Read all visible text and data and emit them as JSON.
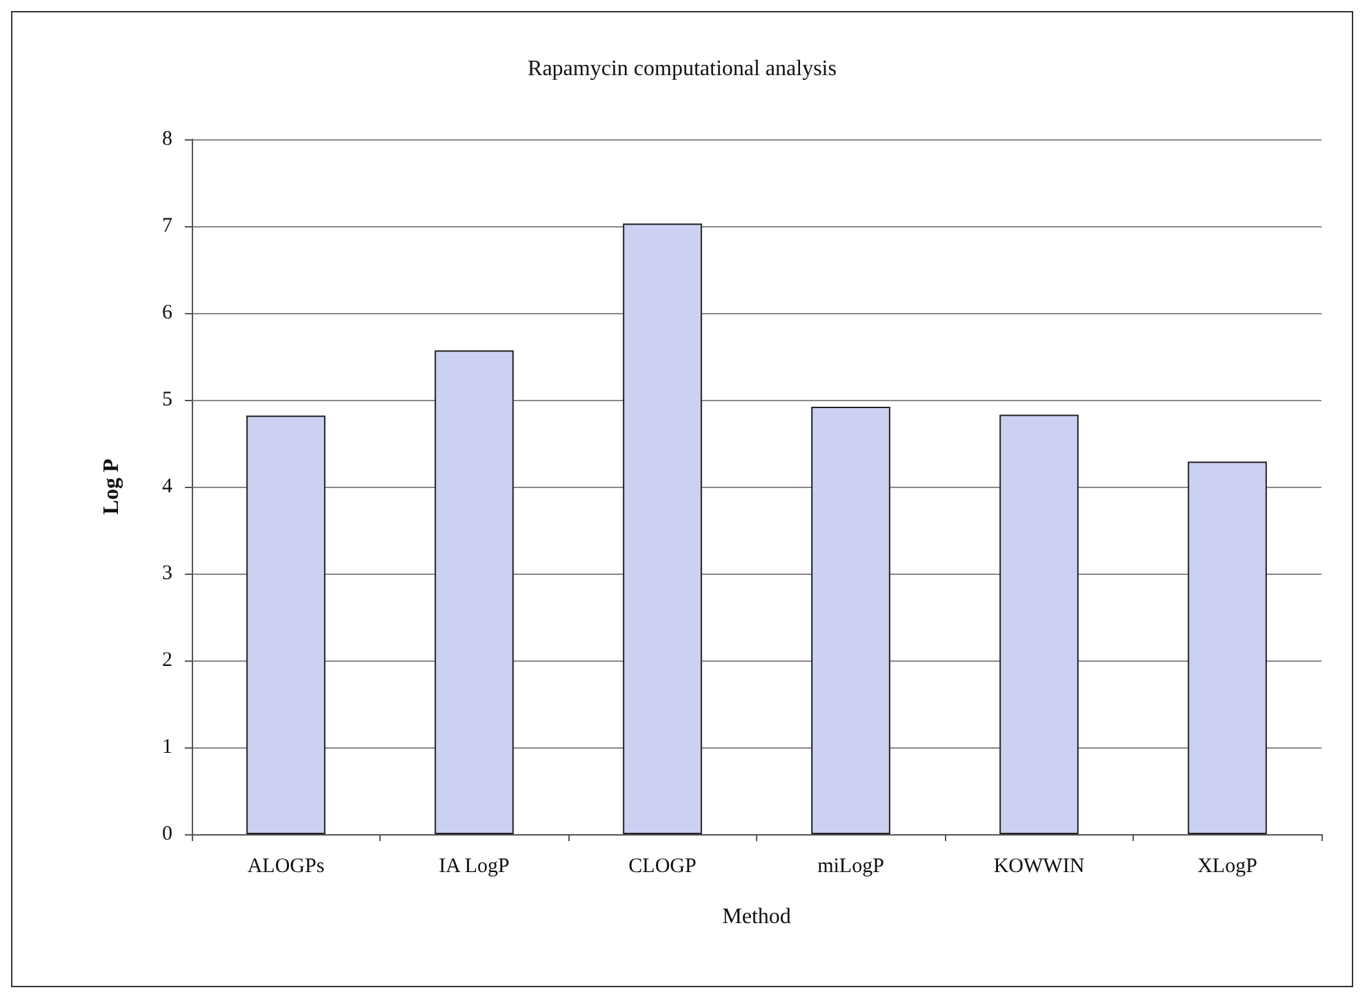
{
  "chart_data": {
    "type": "bar",
    "title": "Rapamycin computational analysis",
    "xlabel": "Method",
    "ylabel": "Log P",
    "categories": [
      "ALOGPs",
      "IA LogP",
      "CLOGP",
      "miLogP",
      "KOWWIN",
      "XLogP"
    ],
    "values": [
      4.82,
      5.57,
      7.03,
      4.92,
      4.83,
      4.29
    ],
    "color": "#ccd1f2",
    "ylim": [
      0,
      8
    ],
    "yticks": [
      0,
      1,
      2,
      3,
      4,
      5,
      6,
      7,
      8
    ],
    "grid": "y"
  }
}
